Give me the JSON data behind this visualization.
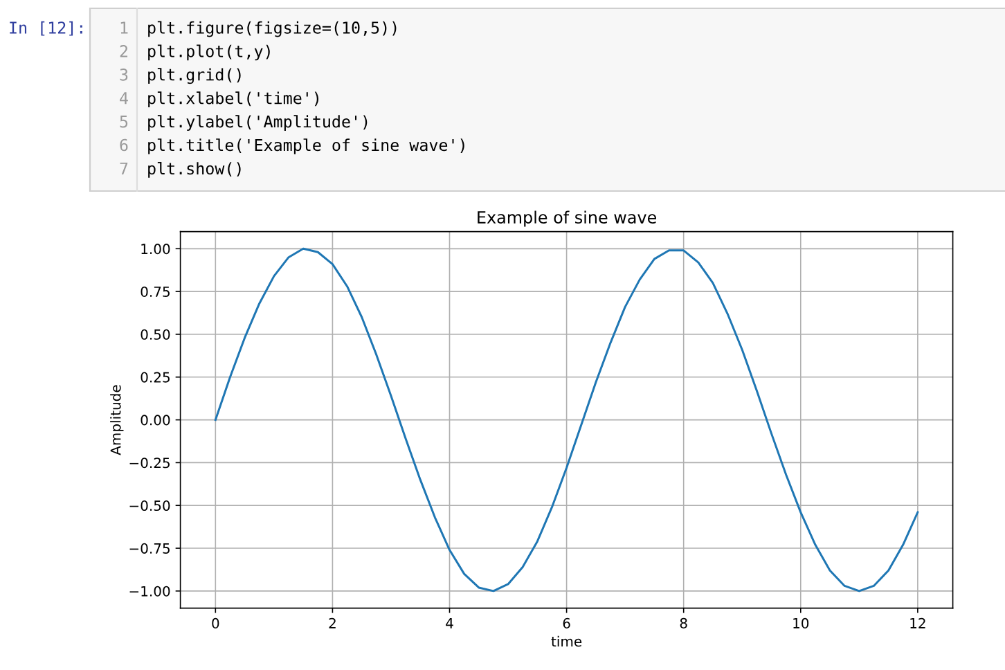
{
  "chart_data": {
    "type": "line",
    "title": "Example of sine wave",
    "xlabel": "time",
    "ylabel": "Amplitude",
    "annotations": [
      "In [12]:",
      "1",
      "plt.figure(figsize=(10,5))",
      "2",
      "plt.plot(t,y)",
      "3",
      "plt.grid()",
      "4",
      "plt.xlabel('time')",
      "5",
      "plt.ylabel('Amplitude')",
      "6",
      "plt.title('Example of sine wave')",
      "7",
      "plt.show()"
    ],
    "x": [
      0,
      0.25,
      0.5,
      0.75,
      1,
      1.25,
      1.5,
      1.75,
      2,
      2.25,
      2.5,
      2.75,
      3,
      3.25,
      3.5,
      3.75,
      4,
      4.25,
      4.5,
      4.75,
      5,
      5.25,
      5.5,
      5.75,
      6,
      6.25,
      6.5,
      6.75,
      7,
      7.25,
      7.5,
      7.75,
      8,
      8.25,
      8.5,
      8.75,
      9,
      9.25,
      9.5,
      9.75,
      10,
      10.25,
      10.5,
      10.75,
      11,
      11.25,
      11.5,
      11.75,
      12
    ],
    "series": [
      {
        "color": "#1f77b4",
        "values": [
          0,
          0.25,
          0.48,
          0.68,
          0.84,
          0.95,
          1.0,
          0.98,
          0.91,
          0.78,
          0.6,
          0.38,
          0.14,
          -0.11,
          -0.35,
          -0.57,
          -0.76,
          -0.9,
          -0.98,
          -1.0,
          -0.96,
          -0.86,
          -0.71,
          -0.51,
          -0.28,
          -0.03,
          0.22,
          0.45,
          0.66,
          0.82,
          0.94,
          0.99,
          0.99,
          0.92,
          0.8,
          0.62,
          0.41,
          0.17,
          -0.08,
          -0.32,
          -0.54,
          -0.73,
          -0.88,
          -0.97,
          -1.0,
          -0.97,
          -0.88,
          -0.73,
          -0.54
        ]
      }
    ],
    "xlim": [
      -0.6,
      12.6
    ],
    "ylim": [
      -1.1,
      1.1
    ],
    "xticks": [
      0,
      2,
      4,
      6,
      8,
      10,
      12
    ],
    "yticks": [
      {
        "value": -1,
        "label": "−1.00"
      },
      {
        "value": -0.75,
        "label": "−0.75"
      },
      {
        "value": -0.5,
        "label": "−0.50"
      },
      {
        "value": -0.25,
        "label": "−0.25"
      },
      {
        "value": 0,
        "label": "0.00"
      },
      {
        "value": 0.25,
        "label": "0.25"
      },
      {
        "value": 0.5,
        "label": "0.50"
      },
      {
        "value": 0.75,
        "label": "0.75"
      },
      {
        "value": 1,
        "label": "1.00"
      }
    ],
    "grid": true
  }
}
